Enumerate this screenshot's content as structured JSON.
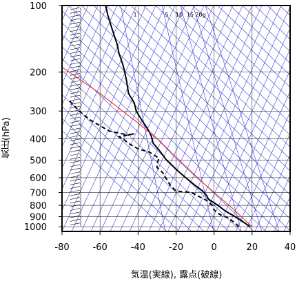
{
  "chart_data": {
    "type": "line",
    "title": "",
    "xlabel": "気温(実線), 露点(破線)",
    "ylabel": "気圧(hPa)",
    "xlim": [
      -80,
      40
    ],
    "ylim": [
      1050,
      100
    ],
    "y_scale": "log",
    "x_ticks": [
      -80,
      -60,
      -40,
      -20,
      0,
      20,
      40
    ],
    "y_ticks": [
      100,
      200,
      300,
      400,
      500,
      600,
      700,
      800,
      900,
      1000
    ],
    "mixing_ratio_labels": [
      "1",
      "5",
      "10",
      "15",
      "20g"
    ],
    "grid": true,
    "series": [
      {
        "style": "solid",
        "color": "#000000",
        "points": [
          [
            -57,
            100
          ],
          [
            -56,
            110
          ],
          [
            -54,
            125
          ],
          [
            -51,
            150
          ],
          [
            -50,
            165
          ],
          [
            -48,
            185
          ],
          [
            -47,
            200
          ],
          [
            -46,
            220
          ],
          [
            -45,
            250
          ],
          [
            -42,
            275
          ],
          [
            -41,
            300
          ],
          [
            -38,
            330
          ],
          [
            -35,
            360
          ],
          [
            -33,
            390
          ],
          [
            -32,
            420
          ],
          [
            -29,
            450
          ],
          [
            -25,
            500
          ],
          [
            -20,
            550
          ],
          [
            -15,
            600
          ],
          [
            -10,
            650
          ],
          [
            -6,
            690
          ],
          [
            -4,
            720
          ],
          [
            -3,
            750
          ],
          [
            2,
            800
          ],
          [
            6,
            850
          ],
          [
            11,
            900
          ],
          [
            16,
            960
          ],
          [
            19,
            1000
          ]
        ]
      },
      {
        "style": "dashed",
        "color": "#000000",
        "points": [
          [
            -76,
            270
          ],
          [
            -71,
            300
          ],
          [
            -65,
            330
          ],
          [
            -55,
            370
          ],
          [
            -45,
            385
          ],
          [
            -42,
            380
          ],
          [
            -50,
            392
          ],
          [
            -48,
            400
          ],
          [
            -45,
            420
          ],
          [
            -40,
            445
          ],
          [
            -34,
            460
          ],
          [
            -29,
            490
          ],
          [
            -30,
            520
          ],
          [
            -30,
            540
          ],
          [
            -27,
            570
          ],
          [
            -25,
            610
          ],
          [
            -23,
            650
          ],
          [
            -20,
            690
          ],
          [
            -12,
            700
          ],
          [
            -8,
            730
          ],
          [
            -4,
            760
          ],
          [
            -1,
            800
          ],
          [
            0,
            840
          ],
          [
            3,
            880
          ],
          [
            7,
            910
          ],
          [
            11,
            960
          ],
          [
            13,
            1000
          ]
        ]
      },
      {
        "style": "solid",
        "color": "#e8201c",
        "points": [
          [
            -80,
            190
          ],
          [
            -60,
            250
          ],
          [
            -40,
            340
          ],
          [
            -30,
            400
          ],
          [
            -20,
            490
          ],
          [
            -10,
            590
          ],
          [
            0,
            700
          ],
          [
            10,
            830
          ],
          [
            20,
            1000
          ]
        ]
      }
    ],
    "colors": {
      "frame": "#000000",
      "isotherm": "#3a3adc",
      "grid": "#000000"
    }
  }
}
